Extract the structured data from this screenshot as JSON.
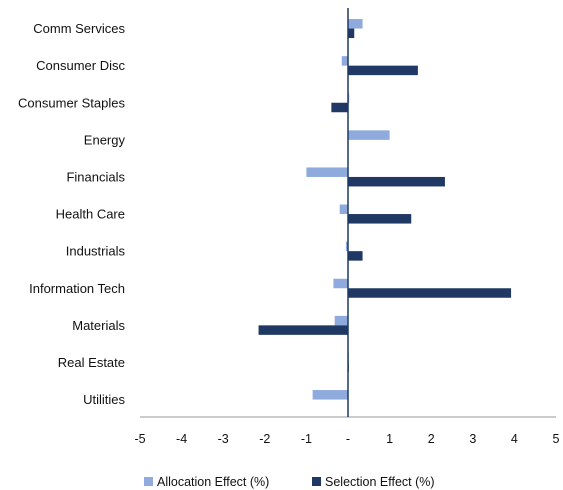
{
  "chart_data": {
    "type": "bar",
    "orientation": "horizontal",
    "categories": [
      "Comm Services",
      "Consumer Disc",
      "Consumer Staples",
      "Energy",
      "Financials",
      "Health Care",
      "Industrials",
      "Information Tech",
      "Materials",
      "Real Estate",
      "Utilities"
    ],
    "series": [
      {
        "name": "Allocation Effect (%)",
        "color": "#8FAADC",
        "values": [
          0.35,
          -0.15,
          0.03,
          1.0,
          -1.0,
          -0.2,
          -0.05,
          -0.35,
          -0.32,
          0.02,
          -0.85
        ]
      },
      {
        "name": "Selection Effect (%)",
        "color": "#1F3864",
        "values": [
          0.15,
          1.68,
          -0.4,
          0.0,
          2.33,
          1.52,
          0.35,
          3.92,
          -2.15,
          0.02,
          0.0
        ]
      }
    ],
    "xlim": [
      -5,
      5
    ],
    "x_ticks": [
      "-5",
      "-4",
      "-3",
      "-2",
      "-1",
      "-",
      "1",
      "2",
      "3",
      "4",
      "5"
    ],
    "grid": false,
    "legend_position": "bottom",
    "title": "",
    "xlabel": "",
    "ylabel": ""
  }
}
